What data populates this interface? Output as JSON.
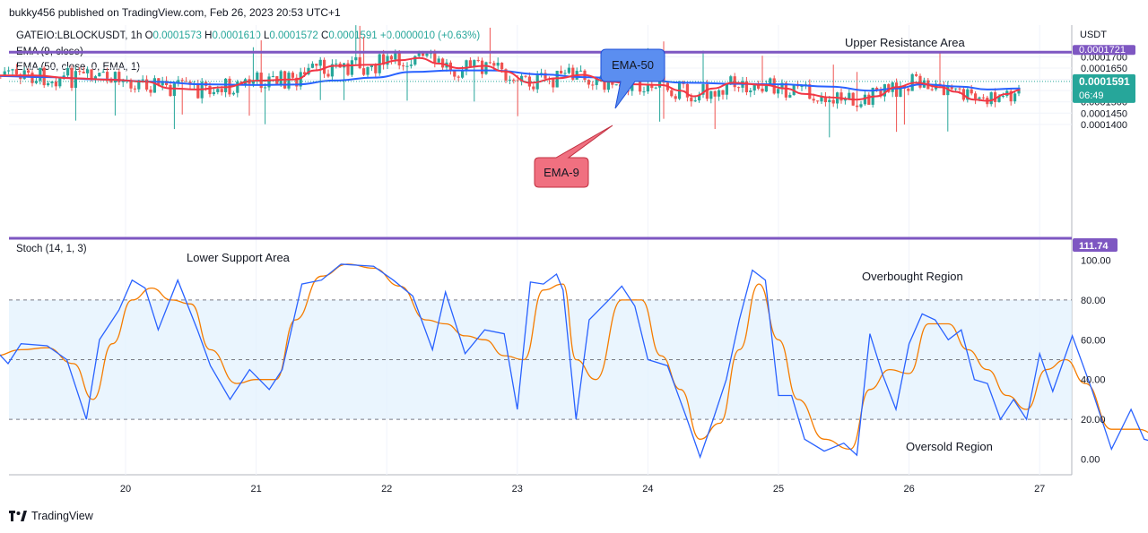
{
  "header": {
    "published": "bukky456 published on TradingView.com, Feb 26, 2023 20:53 UTC+1"
  },
  "legend": {
    "symbol": "GATEIO:LBLOCKUSDT, 1h",
    "ohlc": {
      "o_label": "O",
      "o": "0.0001573",
      "h_label": "H",
      "h": "0.0001610",
      "l_label": "L",
      "l": "0.0001572",
      "c_label": "C",
      "c": "0.0001591",
      "chg": "+0.0000010 (+0.63%)"
    },
    "ema9": "EMA (9, close)",
    "ema50": "EMA (50, close, 0, EMA, 1)",
    "stoch": "Stoch (14, 1, 3)"
  },
  "axis": {
    "unit": "USDT",
    "price_ticks": [
      "0.0001700",
      "0.0001650",
      "0.0001600",
      "0.0001550",
      "0.0001500",
      "0.0001450",
      "0.0001400"
    ],
    "resistance_label": "0.0001721",
    "current_price": "0.0001591",
    "countdown": "06:49",
    "stoch_ticks": [
      "100.00",
      "80.00",
      "60.00",
      "40.00",
      "20.00",
      "0.00"
    ],
    "stoch_badge": "111.74",
    "x_ticks": [
      "20",
      "21",
      "22",
      "23",
      "24",
      "25",
      "26",
      "27"
    ]
  },
  "annotations": {
    "upper_resistance": "Upper Resistance Area",
    "lower_support": "Lower Support Area",
    "overbought": "Overbought Region",
    "oversold": "Oversold Region",
    "ema50_callout": "EMA-50",
    "ema9_callout": "EMA-9"
  },
  "footer": {
    "brand": "TradingView"
  },
  "colors": {
    "up": "#26a69a",
    "down": "#ef5350",
    "ema9": "#f23645",
    "ema50": "#2962ff",
    "resistance": "#7e57c2",
    "stoch_k": "#2962ff",
    "stoch_d": "#f57c00",
    "band": "#e3f2fd",
    "ema50_box": "#5b8ef0",
    "ema9_box": "#f07080"
  },
  "chart_data": [
    {
      "type": "candlestick",
      "title": "GATEIO:LBLOCKUSDT, 1h",
      "ylabel": "USDT",
      "x_ticks": [
        "20",
        "21",
        "22",
        "23",
        "24",
        "25",
        "26",
        "27"
      ],
      "ylim": [
        0.0001375,
        0.000173
      ],
      "resistance_level": 0.0001721,
      "current_close": 0.0001591,
      "ema9_points": [
        [
          19.0,
          0.0001617
        ],
        [
          19.3,
          0.0001617
        ],
        [
          19.6,
          0.0001605
        ],
        [
          19.9,
          0.0001598
        ],
        [
          20.15,
          0.000159
        ],
        [
          20.35,
          0.000156
        ],
        [
          20.55,
          0.0001555
        ],
        [
          20.75,
          0.0001565
        ],
        [
          21.0,
          0.0001594
        ],
        [
          21.3,
          0.00016
        ],
        [
          21.45,
          0.000164
        ],
        [
          21.6,
          0.000166
        ],
        [
          21.9,
          0.0001665
        ],
        [
          22.1,
          0.0001685
        ],
        [
          22.25,
          0.0001695
        ],
        [
          22.4,
          0.000167
        ],
        [
          22.55,
          0.000165
        ],
        [
          22.75,
          0.000166
        ],
        [
          22.9,
          0.0001635
        ],
        [
          23.1,
          0.0001585
        ],
        [
          23.3,
          0.0001605
        ],
        [
          23.5,
          0.000162
        ],
        [
          23.7,
          0.000159
        ],
        [
          23.9,
          0.0001578
        ],
        [
          24.1,
          0.0001575
        ],
        [
          24.25,
          0.000155
        ],
        [
          24.35,
          0.0001525
        ],
        [
          24.5,
          0.000156
        ],
        [
          24.65,
          0.0001585
        ],
        [
          24.9,
          0.0001575
        ],
        [
          25.05,
          0.000156
        ],
        [
          25.2,
          0.0001535
        ],
        [
          25.4,
          0.000152
        ],
        [
          25.6,
          0.000151
        ],
        [
          25.75,
          0.0001525
        ],
        [
          25.9,
          0.0001565
        ],
        [
          26.05,
          0.0001585
        ],
        [
          26.25,
          0.0001565
        ],
        [
          26.35,
          0.0001545
        ],
        [
          26.5,
          0.000151
        ],
        [
          26.6,
          0.0001505
        ],
        [
          26.75,
          0.0001535
        ],
        [
          26.85,
          0.0001553
        ]
      ],
      "ema50_points": [
        [
          19.0,
          0.0001615
        ],
        [
          19.4,
          0.000161
        ],
        [
          19.8,
          0.00016
        ],
        [
          20.2,
          0.000159
        ],
        [
          20.6,
          0.0001578
        ],
        [
          21.0,
          0.0001575
        ],
        [
          21.3,
          0.0001577
        ],
        [
          21.6,
          0.0001595
        ],
        [
          21.9,
          0.0001608
        ],
        [
          22.2,
          0.0001633
        ],
        [
          22.5,
          0.000164
        ],
        [
          22.8,
          0.000164
        ],
        [
          23.2,
          0.0001622
        ],
        [
          23.5,
          0.000161
        ],
        [
          23.9,
          0.0001601
        ],
        [
          24.3,
          0.0001585
        ],
        [
          24.7,
          0.000158
        ],
        [
          25.0,
          0.0001578
        ],
        [
          25.4,
          0.0001568
        ],
        [
          25.7,
          0.000155
        ],
        [
          25.9,
          0.000156
        ],
        [
          26.1,
          0.0001578
        ],
        [
          26.4,
          0.0001568
        ],
        [
          26.6,
          0.0001555
        ],
        [
          26.85,
          0.000156
        ]
      ]
    },
    {
      "type": "line",
      "title": "Stoch (14, 1, 3)",
      "x_ticks": [
        "20",
        "21",
        "22",
        "23",
        "24",
        "25",
        "26",
        "27"
      ],
      "ylim": [
        -5,
        105
      ],
      "overbought_level": 80,
      "oversold_level": 20,
      "midline": 50,
      "series": [
        {
          "values": [
            [
              19.0,
              55
            ],
            [
              19.1,
              48
            ],
            [
              19.2,
              58
            ],
            [
              19.4,
              57
            ],
            [
              19.55,
              50
            ],
            [
              19.7,
              20
            ],
            [
              19.8,
              60
            ],
            [
              19.95,
              75
            ],
            [
              20.05,
              90
            ],
            [
              20.15,
              86
            ],
            [
              20.25,
              65
            ],
            [
              20.4,
              90
            ],
            [
              20.55,
              65
            ],
            [
              20.65,
              47
            ],
            [
              20.8,
              30
            ],
            [
              20.95,
              45
            ],
            [
              21.1,
              35
            ],
            [
              21.2,
              45
            ],
            [
              21.35,
              88
            ],
            [
              21.5,
              90
            ],
            [
              21.65,
              98
            ],
            [
              21.9,
              97
            ],
            [
              22.05,
              90
            ],
            [
              22.2,
              82
            ],
            [
              22.35,
              55
            ],
            [
              22.45,
              84
            ],
            [
              22.6,
              53
            ],
            [
              22.75,
              65
            ],
            [
              22.9,
              63
            ],
            [
              23.0,
              25
            ],
            [
              23.1,
              89
            ],
            [
              23.2,
              88
            ],
            [
              23.3,
              93
            ],
            [
              23.35,
              85
            ],
            [
              23.45,
              20
            ],
            [
              23.55,
              70
            ],
            [
              23.7,
              80
            ],
            [
              23.8,
              87
            ],
            [
              23.9,
              77
            ],
            [
              24.0,
              50
            ],
            [
              24.15,
              47
            ],
            [
              24.3,
              20
            ],
            [
              24.4,
              1
            ],
            [
              24.5,
              20
            ],
            [
              24.6,
              40
            ],
            [
              24.7,
              70
            ],
            [
              24.8,
              95
            ],
            [
              24.9,
              90
            ],
            [
              25.0,
              32
            ],
            [
              25.1,
              32
            ],
            [
              25.2,
              10
            ],
            [
              25.35,
              4
            ],
            [
              25.5,
              8
            ],
            [
              25.6,
              2
            ],
            [
              25.7,
              63
            ],
            [
              25.8,
              42
            ],
            [
              25.9,
              25
            ],
            [
              26.0,
              58
            ],
            [
              26.1,
              73
            ],
            [
              26.2,
              70
            ],
            [
              26.3,
              60
            ],
            [
              26.4,
              65
            ],
            [
              26.5,
              40
            ],
            [
              26.6,
              38
            ],
            [
              26.7,
              20
            ],
            [
              26.8,
              30
            ],
            [
              26.9,
              20
            ],
            [
              27.0,
              53
            ],
            [
              27.1,
              34
            ],
            [
              27.25,
              62
            ],
            [
              27.4,
              35
            ],
            [
              27.55,
              5
            ],
            [
              27.7,
              25
            ],
            [
              27.8,
              10
            ],
            [
              27.9,
              8
            ],
            [
              28.0,
              60
            ],
            [
              28.15,
              98
            ],
            [
              28.25,
              76
            ],
            [
              28.4,
              80
            ],
            [
              28.55,
              73
            ],
            [
              28.7,
              70
            ],
            [
              28.9,
              58
            ],
            [
              29.05,
              50
            ],
            [
              29.2,
              36
            ],
            [
              29.35,
              45
            ],
            [
              29.5,
              55
            ],
            [
              29.6,
              90
            ],
            [
              29.7,
              68
            ],
            [
              29.8,
              87
            ]
          ]
        },
        {
          "values": [
            [
              19.0,
              52
            ],
            [
              19.2,
              55
            ],
            [
              19.4,
              56
            ],
            [
              19.6,
              48
            ],
            [
              19.75,
              30
            ],
            [
              19.9,
              58
            ],
            [
              20.05,
              80
            ],
            [
              20.2,
              86
            ],
            [
              20.35,
              80
            ],
            [
              20.5,
              78
            ],
            [
              20.65,
              55
            ],
            [
              20.85,
              38
            ],
            [
              21.0,
              40
            ],
            [
              21.15,
              40
            ],
            [
              21.3,
              70
            ],
            [
              21.5,
              92
            ],
            [
              21.7,
              98
            ],
            [
              21.9,
              96
            ],
            [
              22.1,
              87
            ],
            [
              22.3,
              70
            ],
            [
              22.45,
              68
            ],
            [
              22.6,
              62
            ],
            [
              22.75,
              60
            ],
            [
              22.9,
              52
            ],
            [
              23.05,
              50
            ],
            [
              23.2,
              85
            ],
            [
              23.35,
              88
            ],
            [
              23.45,
              50
            ],
            [
              23.6,
              40
            ],
            [
              23.8,
              80
            ],
            [
              23.95,
              80
            ],
            [
              24.1,
              52
            ],
            [
              24.25,
              35
            ],
            [
              24.4,
              10
            ],
            [
              24.55,
              18
            ],
            [
              24.7,
              55
            ],
            [
              24.85,
              88
            ],
            [
              25.0,
              60
            ],
            [
              25.15,
              30
            ],
            [
              25.35,
              10
            ],
            [
              25.55,
              5
            ],
            [
              25.7,
              35
            ],
            [
              25.85,
              45
            ],
            [
              26.0,
              43
            ],
            [
              26.15,
              68
            ],
            [
              26.3,
              68
            ],
            [
              26.45,
              55
            ],
            [
              26.6,
              45
            ],
            [
              26.75,
              32
            ],
            [
              26.9,
              25
            ],
            [
              27.05,
              45
            ],
            [
              27.2,
              50
            ],
            [
              27.35,
              38
            ],
            [
              27.55,
              15
            ],
            [
              27.75,
              15
            ],
            [
              27.95,
              10
            ],
            [
              28.05,
              45
            ],
            [
              28.2,
              95
            ],
            [
              28.35,
              80
            ],
            [
              28.5,
              78
            ],
            [
              28.7,
              73
            ],
            [
              28.9,
              62
            ],
            [
              29.1,
              45
            ],
            [
              29.3,
              42
            ],
            [
              29.5,
              65
            ],
            [
              29.65,
              65
            ],
            [
              29.8,
              75
            ]
          ]
        }
      ]
    }
  ]
}
